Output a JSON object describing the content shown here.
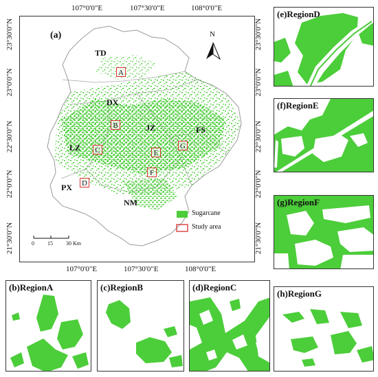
{
  "main_map": {
    "title": "(a)",
    "top_labels": [
      "107°0'0\"E",
      "107°30'0\"E",
      "108°0'0\"E"
    ],
    "bottom_labels": [
      "107°0'0\"E",
      "107°30'0\"E",
      "108°0'0\"E"
    ],
    "left_labels": [
      "23°30'0\"N",
      "23°0'0\"N",
      "22°30'0\"N",
      "22°0'0\"N",
      "21°30'0\"N"
    ],
    "right_labels": [
      "23°30'0\"N",
      "23°0'0\"N",
      "22°30'0\"N",
      "22°0'0\"N",
      "21°30'0\"N"
    ],
    "regions": [
      "TD",
      "DX",
      "JZ",
      "FS",
      "LZ",
      "PX",
      "NM"
    ],
    "study_boxes": [
      "A",
      "B",
      "C",
      "D",
      "E",
      "F",
      "G"
    ],
    "north": "N",
    "scale_ticks": [
      "0",
      "15",
      "30 Km"
    ],
    "legend": {
      "sugarcane": "Sugarcane",
      "study_area": "Study area"
    },
    "colors": {
      "sugarcane": "#4ccd3a",
      "study_area": "#d93030",
      "boundary": "#999999"
    }
  },
  "panels": {
    "b": "(b)RegionA",
    "c": "(c)RegionB",
    "d": "(d)RegionC",
    "e": "(e)RegionD",
    "f": "(f)RegionE",
    "g": "(g)RegionF",
    "h": "(h)RegionG"
  }
}
